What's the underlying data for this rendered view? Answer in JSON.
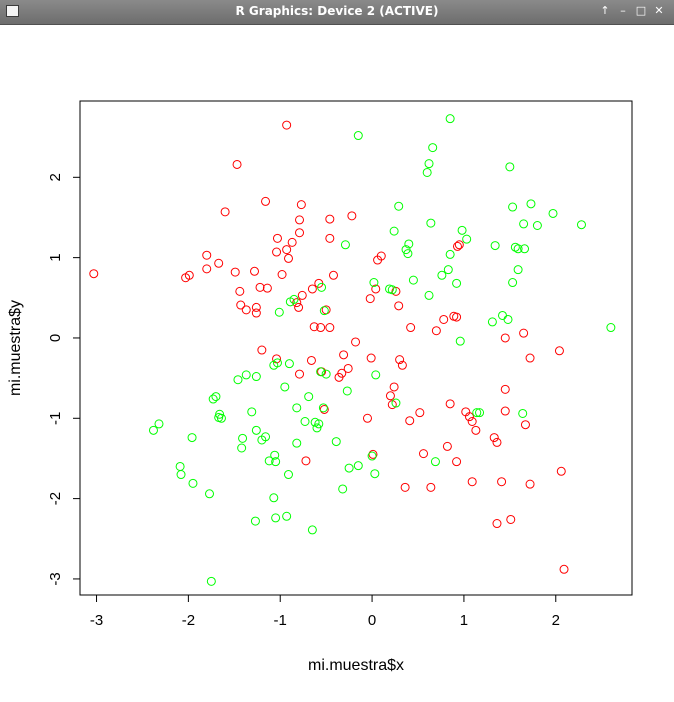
{
  "window": {
    "title": "R Graphics: Device 2 (ACTIVE)",
    "buttons": {
      "up_glyph": "↑",
      "minimize_glyph": "–",
      "maximize_glyph": "□",
      "close_glyph": "✕"
    }
  },
  "chart_data": {
    "type": "scatter",
    "title": "",
    "xlabel": "mi.muestra$x",
    "ylabel": "mi.muestra$y",
    "xlim": [
      -3.18,
      2.83
    ],
    "ylim": [
      -3.2,
      2.95
    ],
    "xticks": [
      -3,
      -2,
      -1,
      0,
      1,
      2
    ],
    "yticks": [
      -3,
      -2,
      -1,
      0,
      1,
      2
    ],
    "grid": false,
    "legend": "none",
    "series": [
      {
        "color": "#ff0000",
        "marker": "open-circle",
        "points": [
          [
            -3.03,
            0.8
          ],
          [
            -2.03,
            0.75
          ],
          [
            -1.99,
            0.78
          ],
          [
            -1.8,
            1.03
          ],
          [
            -1.8,
            0.86
          ],
          [
            -1.67,
            0.93
          ],
          [
            -1.6,
            1.57
          ],
          [
            -1.49,
            0.82
          ],
          [
            -1.47,
            2.16
          ],
          [
            -1.44,
            0.58
          ],
          [
            -1.43,
            0.41
          ],
          [
            -1.37,
            0.35
          ],
          [
            -1.28,
            0.83
          ],
          [
            -1.26,
            0.31
          ],
          [
            -1.26,
            0.38
          ],
          [
            -1.22,
            0.63
          ],
          [
            -1.2,
            -0.15
          ],
          [
            -1.16,
            1.7
          ],
          [
            -1.14,
            0.62
          ],
          [
            -1.04,
            1.07
          ],
          [
            -1.03,
            1.24
          ],
          [
            -1.04,
            -0.26
          ],
          [
            -0.98,
            0.79
          ],
          [
            -0.93,
            2.65
          ],
          [
            -0.93,
            1.1
          ],
          [
            -0.91,
            0.99
          ],
          [
            -0.87,
            1.19
          ],
          [
            -0.82,
            0.44
          ],
          [
            -0.8,
            0.38
          ],
          [
            -0.79,
            1.47
          ],
          [
            -0.77,
            1.66
          ],
          [
            -0.79,
            1.31
          ],
          [
            -0.76,
            0.53
          ],
          [
            -0.79,
            -0.45
          ],
          [
            -0.72,
            -1.53
          ],
          [
            -0.66,
            -0.28
          ],
          [
            -0.65,
            0.61
          ],
          [
            -0.63,
            0.14
          ],
          [
            -0.58,
            0.68
          ],
          [
            -0.56,
            0.13
          ],
          [
            -0.55,
            -0.42
          ],
          [
            -0.52,
            -0.89
          ],
          [
            -0.5,
            0.35
          ],
          [
            -0.46,
            1.48
          ],
          [
            -0.46,
            1.24
          ],
          [
            -0.46,
            0.13
          ],
          [
            -0.42,
            0.78
          ],
          [
            -0.36,
            -0.49
          ],
          [
            -0.33,
            -0.44
          ],
          [
            -0.31,
            -0.21
          ],
          [
            -0.26,
            -0.38
          ],
          [
            -0.22,
            1.52
          ],
          [
            -0.18,
            -0.05
          ],
          [
            -0.05,
            -1.0
          ],
          [
            -0.02,
            0.49
          ],
          [
            -0.01,
            -0.25
          ],
          [
            0.01,
            -1.45
          ],
          [
            0.04,
            0.61
          ],
          [
            0.06,
            0.97
          ],
          [
            0.1,
            1.02
          ],
          [
            0.2,
            -0.72
          ],
          [
            0.22,
            -0.83
          ],
          [
            0.24,
            -0.61
          ],
          [
            0.26,
            0.58
          ],
          [
            0.29,
            0.4
          ],
          [
            0.3,
            -0.27
          ],
          [
            0.33,
            -0.34
          ],
          [
            0.36,
            -1.86
          ],
          [
            0.41,
            -1.03
          ],
          [
            0.42,
            0.13
          ],
          [
            0.52,
            -0.93
          ],
          [
            0.56,
            -1.44
          ],
          [
            0.64,
            -1.86
          ],
          [
            0.7,
            0.09
          ],
          [
            0.78,
            0.23
          ],
          [
            0.82,
            -1.35
          ],
          [
            0.85,
            -0.82
          ],
          [
            0.89,
            0.27
          ],
          [
            0.92,
            0.26
          ],
          [
            0.92,
            -1.54
          ],
          [
            0.93,
            1.14
          ],
          [
            0.95,
            1.16
          ],
          [
            1.02,
            -0.92
          ],
          [
            1.06,
            -0.98
          ],
          [
            1.09,
            -1.04
          ],
          [
            1.09,
            -1.79
          ],
          [
            1.13,
            -1.15
          ],
          [
            1.33,
            -1.24
          ],
          [
            1.36,
            -2.31
          ],
          [
            1.36,
            -1.3
          ],
          [
            1.41,
            -1.79
          ],
          [
            1.45,
            0.0
          ],
          [
            1.45,
            -0.64
          ],
          [
            1.45,
            -0.91
          ],
          [
            1.51,
            -2.26
          ],
          [
            1.65,
            0.06
          ],
          [
            1.67,
            -1.08
          ],
          [
            1.72,
            -0.25
          ],
          [
            1.72,
            -1.82
          ],
          [
            2.04,
            -0.16
          ],
          [
            2.06,
            -1.66
          ],
          [
            2.09,
            -2.88
          ]
        ]
      },
      {
        "color": "#00ff00",
        "marker": "open-circle",
        "points": [
          [
            -2.38,
            -1.15
          ],
          [
            -2.32,
            -1.07
          ],
          [
            -2.09,
            -1.6
          ],
          [
            -2.08,
            -1.7
          ],
          [
            -1.96,
            -1.24
          ],
          [
            -1.95,
            -1.81
          ],
          [
            -1.77,
            -1.94
          ],
          [
            -1.75,
            -3.03
          ],
          [
            -1.73,
            -0.76
          ],
          [
            -1.7,
            -0.73
          ],
          [
            -1.67,
            -0.99
          ],
          [
            -1.66,
            -0.95
          ],
          [
            -1.64,
            -1.0
          ],
          [
            -1.46,
            -0.52
          ],
          [
            -1.42,
            -1.37
          ],
          [
            -1.41,
            -1.25
          ],
          [
            -1.37,
            -0.46
          ],
          [
            -1.31,
            -0.92
          ],
          [
            -1.27,
            -2.28
          ],
          [
            -1.26,
            -1.15
          ],
          [
            -1.26,
            -0.48
          ],
          [
            -1.2,
            -1.27
          ],
          [
            -1.16,
            -1.23
          ],
          [
            -1.12,
            -1.53
          ],
          [
            -1.07,
            -1.99
          ],
          [
            -1.07,
            -0.34
          ],
          [
            -1.06,
            -1.46
          ],
          [
            -1.05,
            -1.54
          ],
          [
            -1.05,
            -2.24
          ],
          [
            -1.03,
            -0.31
          ],
          [
            -1.01,
            0.32
          ],
          [
            -0.95,
            -0.61
          ],
          [
            -0.93,
            -2.22
          ],
          [
            -0.91,
            -1.7
          ],
          [
            -0.9,
            -0.32
          ],
          [
            -0.89,
            0.45
          ],
          [
            -0.85,
            0.48
          ],
          [
            -0.82,
            -0.87
          ],
          [
            -0.82,
            -1.31
          ],
          [
            -0.73,
            -1.04
          ],
          [
            -0.69,
            -0.73
          ],
          [
            -0.65,
            -2.39
          ],
          [
            -0.62,
            -1.05
          ],
          [
            -0.6,
            -1.12
          ],
          [
            -0.58,
            -1.07
          ],
          [
            -0.56,
            -0.42
          ],
          [
            -0.55,
            0.63
          ],
          [
            -0.53,
            -0.87
          ],
          [
            -0.52,
            0.34
          ],
          [
            -0.5,
            -0.45
          ],
          [
            -0.39,
            -1.29
          ],
          [
            -0.32,
            -1.88
          ],
          [
            -0.29,
            1.16
          ],
          [
            -0.27,
            -0.66
          ],
          [
            -0.25,
            -1.62
          ],
          [
            -0.15,
            2.52
          ],
          [
            -0.15,
            -1.59
          ],
          [
            0.0,
            -1.47
          ],
          [
            0.02,
            0.69
          ],
          [
            0.03,
            -1.69
          ],
          [
            0.04,
            -0.46
          ],
          [
            0.19,
            0.61
          ],
          [
            0.22,
            0.6
          ],
          [
            0.24,
            1.33
          ],
          [
            0.26,
            -0.81
          ],
          [
            0.29,
            1.64
          ],
          [
            0.37,
            1.1
          ],
          [
            0.39,
            1.05
          ],
          [
            0.4,
            1.17
          ],
          [
            0.45,
            0.72
          ],
          [
            0.6,
            2.06
          ],
          [
            0.62,
            0.53
          ],
          [
            0.62,
            2.17
          ],
          [
            0.64,
            1.43
          ],
          [
            0.66,
            2.37
          ],
          [
            0.69,
            -1.54
          ],
          [
            0.76,
            0.78
          ],
          [
            0.83,
            0.85
          ],
          [
            0.85,
            1.04
          ],
          [
            0.85,
            2.73
          ],
          [
            0.92,
            0.68
          ],
          [
            0.96,
            -0.04
          ],
          [
            0.98,
            1.34
          ],
          [
            1.03,
            1.23
          ],
          [
            1.14,
            -0.93
          ],
          [
            1.17,
            -0.93
          ],
          [
            1.31,
            0.2
          ],
          [
            1.34,
            1.15
          ],
          [
            1.42,
            0.28
          ],
          [
            1.48,
            0.23
          ],
          [
            1.5,
            2.13
          ],
          [
            1.53,
            0.69
          ],
          [
            1.53,
            1.63
          ],
          [
            1.56,
            1.13
          ],
          [
            1.59,
            1.11
          ],
          [
            1.59,
            0.85
          ],
          [
            1.64,
            -0.94
          ],
          [
            1.65,
            1.42
          ],
          [
            1.66,
            1.11
          ],
          [
            1.73,
            1.67
          ],
          [
            1.8,
            1.4
          ],
          [
            1.97,
            1.55
          ],
          [
            2.28,
            1.41
          ],
          [
            2.6,
            0.13
          ]
        ]
      }
    ]
  }
}
